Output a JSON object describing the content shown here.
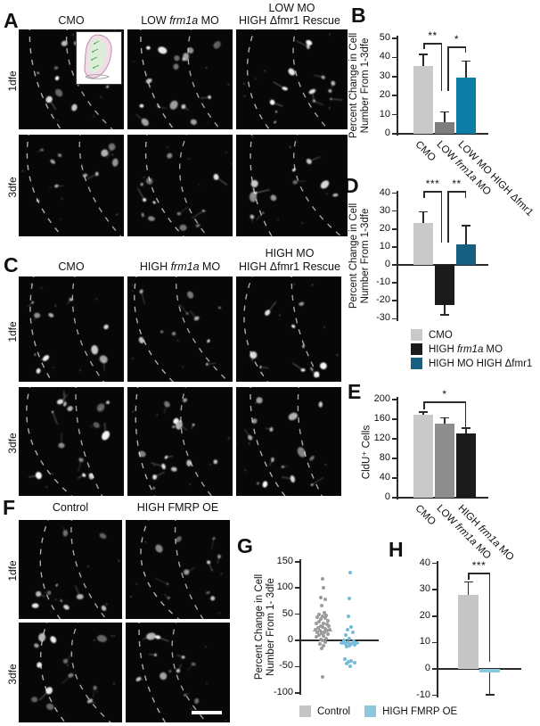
{
  "panels": {
    "A": {
      "letter": "A",
      "row_labels": [
        "1dfe",
        "3dfe"
      ],
      "col_titles": [
        [
          "CMO"
        ],
        [
          "LOW *frm1a* MO"
        ],
        [
          "LOW MO",
          "HIGH Δfmr1 Rescue"
        ]
      ]
    },
    "B": {
      "letter": "B"
    },
    "C": {
      "letter": "C",
      "row_labels": [
        "1dfe",
        "3dfe"
      ],
      "col_titles": [
        [
          "CMO"
        ],
        [
          "HIGH *frm1a* MO"
        ],
        [
          "HIGH MO",
          "HIGH Δfmr1 Rescue"
        ]
      ]
    },
    "D": {
      "letter": "D",
      "legend": [
        {
          "label": "CMO",
          "color": "#c9c9c9"
        },
        {
          "label": "HIGH *frm1a* MO",
          "color": "#1b1b1b"
        },
        {
          "label": "HIGH MO HIGH Δfmr1",
          "color": "#175f80"
        }
      ]
    },
    "E": {
      "letter": "E"
    },
    "F": {
      "letter": "F",
      "row_labels": [
        "1dfe",
        "3dfe"
      ],
      "col_titles": [
        [
          "Control"
        ],
        [
          "HIGH FMRP OE"
        ]
      ]
    },
    "G": {
      "letter": "G"
    },
    "H": {
      "letter": "H"
    }
  },
  "bottom_legend": [
    {
      "label": "Control",
      "color": "#c4c4c4"
    },
    {
      "label": "HIGH FMRP OE",
      "color": "#8ec6dc"
    }
  ],
  "chart_data": [
    {
      "id": "B",
      "type": "bar",
      "ylabel": "Percent Change in Cell Number From 1-3dfe",
      "ylabel_lines": [
        "Percent Change in Cell",
        "Number From 1-3dfe"
      ],
      "ylim": [
        0,
        50
      ],
      "yticks": [
        0,
        10,
        20,
        30,
        40,
        50
      ],
      "categories": [
        "CMO",
        "LOW *frm1a* MO",
        "LOW MO HIGH Δfmr1"
      ],
      "values": [
        35.5,
        6,
        29.5
      ],
      "errors": [
        6,
        5.5,
        8.5
      ],
      "colors": [
        "#c9c9c9",
        "#7d7d7d",
        "#0e7da6"
      ],
      "significance": [
        {
          "from": 0,
          "to": 1,
          "label": "**"
        },
        {
          "from": 1,
          "to": 2,
          "label": "*"
        }
      ]
    },
    {
      "id": "D",
      "type": "bar",
      "ylabel": "Percent Change in Cell Number From 1-3dfe",
      "ylabel_lines": [
        "Percent Change in Cell",
        "Number From 1-3dfe"
      ],
      "ylim": [
        -30,
        40
      ],
      "yticks": [
        -30,
        -20,
        -10,
        0,
        10,
        20,
        30,
        40
      ],
      "categories": [
        "CMO",
        "HIGH *frm1a* MO",
        "HIGH MO HIGH Δfmr1"
      ],
      "values": [
        23.5,
        -22.5,
        11.5
      ],
      "errors": [
        6,
        5,
        10.5
      ],
      "colors": [
        "#c9c9c9",
        "#1b1b1b",
        "#175f80"
      ],
      "significance": [
        {
          "from": 0,
          "to": 1,
          "label": "***"
        },
        {
          "from": 1,
          "to": 2,
          "label": "**"
        }
      ]
    },
    {
      "id": "E",
      "type": "bar",
      "ylabel": "CldU⁺ Cells",
      "ylabel_lines": [
        "CldU⁺ Cells"
      ],
      "ylim": [
        0,
        200
      ],
      "yticks": [
        0,
        40,
        80,
        120,
        160,
        200
      ],
      "categories": [
        "CMO",
        "LOW *frm1a* MO",
        "HIGH *frm1a* MO"
      ],
      "values": [
        170,
        151,
        131
      ],
      "errors": [
        5,
        12,
        11
      ],
      "colors": [
        "#c9c9c9",
        "#8e8e8e",
        "#1b1b1b"
      ],
      "significance": [
        {
          "from": 0,
          "to": 2,
          "label": "*"
        }
      ]
    },
    {
      "id": "G",
      "type": "scatter",
      "ylabel": "Percent Change in Cell Number From 1- 3dfe",
      "ylabel_lines": [
        "Percent Change in Cell",
        "Number From 1- 3dfe"
      ],
      "ylim": [
        -100,
        150
      ],
      "yticks": [
        -100,
        -50,
        0,
        50,
        100,
        150
      ],
      "groups": [
        {
          "name": "Control",
          "color": "#9c9c9c",
          "median": 18,
          "points": [
            [
              0,
              118
            ],
            [
              1,
              100
            ],
            [
              -2,
              82
            ],
            [
              3,
              78
            ],
            [
              -1,
              66
            ],
            [
              2,
              52
            ],
            [
              -4,
              50
            ],
            [
              4,
              48
            ],
            [
              0,
              46
            ],
            [
              -6,
              44
            ],
            [
              3,
              42
            ],
            [
              -2,
              40
            ],
            [
              6,
              38
            ],
            [
              -4,
              35
            ],
            [
              1,
              33
            ],
            [
              -7,
              32
            ],
            [
              5,
              30
            ],
            [
              -2,
              28
            ],
            [
              7,
              27
            ],
            [
              0,
              25
            ],
            [
              -5,
              24
            ],
            [
              3,
              22
            ],
            [
              -8,
              21
            ],
            [
              8,
              20
            ],
            [
              -3,
              19
            ],
            [
              5,
              18
            ],
            [
              -6,
              16
            ],
            [
              2,
              15
            ],
            [
              -1,
              14
            ],
            [
              6,
              12
            ],
            [
              -4,
              10
            ],
            [
              1,
              8
            ],
            [
              -7,
              6
            ],
            [
              4,
              4
            ],
            [
              -2,
              2
            ],
            [
              0,
              0
            ],
            [
              3,
              -3
            ],
            [
              -3,
              -6
            ],
            [
              1,
              -10
            ],
            [
              -1,
              -16
            ],
            [
              0,
              -70
            ]
          ]
        },
        {
          "name": "HIGH FMRP OE",
          "color": "#74bcd9",
          "median": -5,
          "points": [
            [
              1,
              130
            ],
            [
              0,
              80
            ],
            [
              -1,
              46
            ],
            [
              2,
              25
            ],
            [
              -2,
              20
            ],
            [
              4,
              16
            ],
            [
              -4,
              10
            ],
            [
              0,
              3
            ],
            [
              -6,
              0
            ],
            [
              5,
              -2
            ],
            [
              -2,
              -4
            ],
            [
              8,
              -5
            ],
            [
              -8,
              -5
            ],
            [
              2,
              -6
            ],
            [
              -4,
              -7
            ],
            [
              6,
              -8
            ],
            [
              0,
              -10
            ],
            [
              -3,
              -12
            ],
            [
              -5,
              -36
            ],
            [
              2,
              -39
            ],
            [
              -1,
              -40
            ],
            [
              6,
              -42
            ],
            [
              -3,
              -45
            ],
            [
              1,
              -50
            ]
          ]
        }
      ]
    },
    {
      "id": "H",
      "type": "bar",
      "ylabel": "Percent Change in Cell Number From 1 - 3dfe",
      "ylabel_lines": [
        "Percent Change in Cell",
        "Number From 1 - 3dfe"
      ],
      "ylim": [
        -10,
        40
      ],
      "yticks": [
        -10,
        0,
        10,
        20,
        30,
        40
      ],
      "categories": [
        "Control",
        "HIGH FMRP OE"
      ],
      "values": [
        28,
        -1.5
      ],
      "errors": [
        5,
        8
      ],
      "colors": [
        "#c6c6c6",
        "#8ec6dc"
      ],
      "significance": [
        {
          "from": 0,
          "to": 1,
          "label": "***"
        }
      ]
    }
  ]
}
